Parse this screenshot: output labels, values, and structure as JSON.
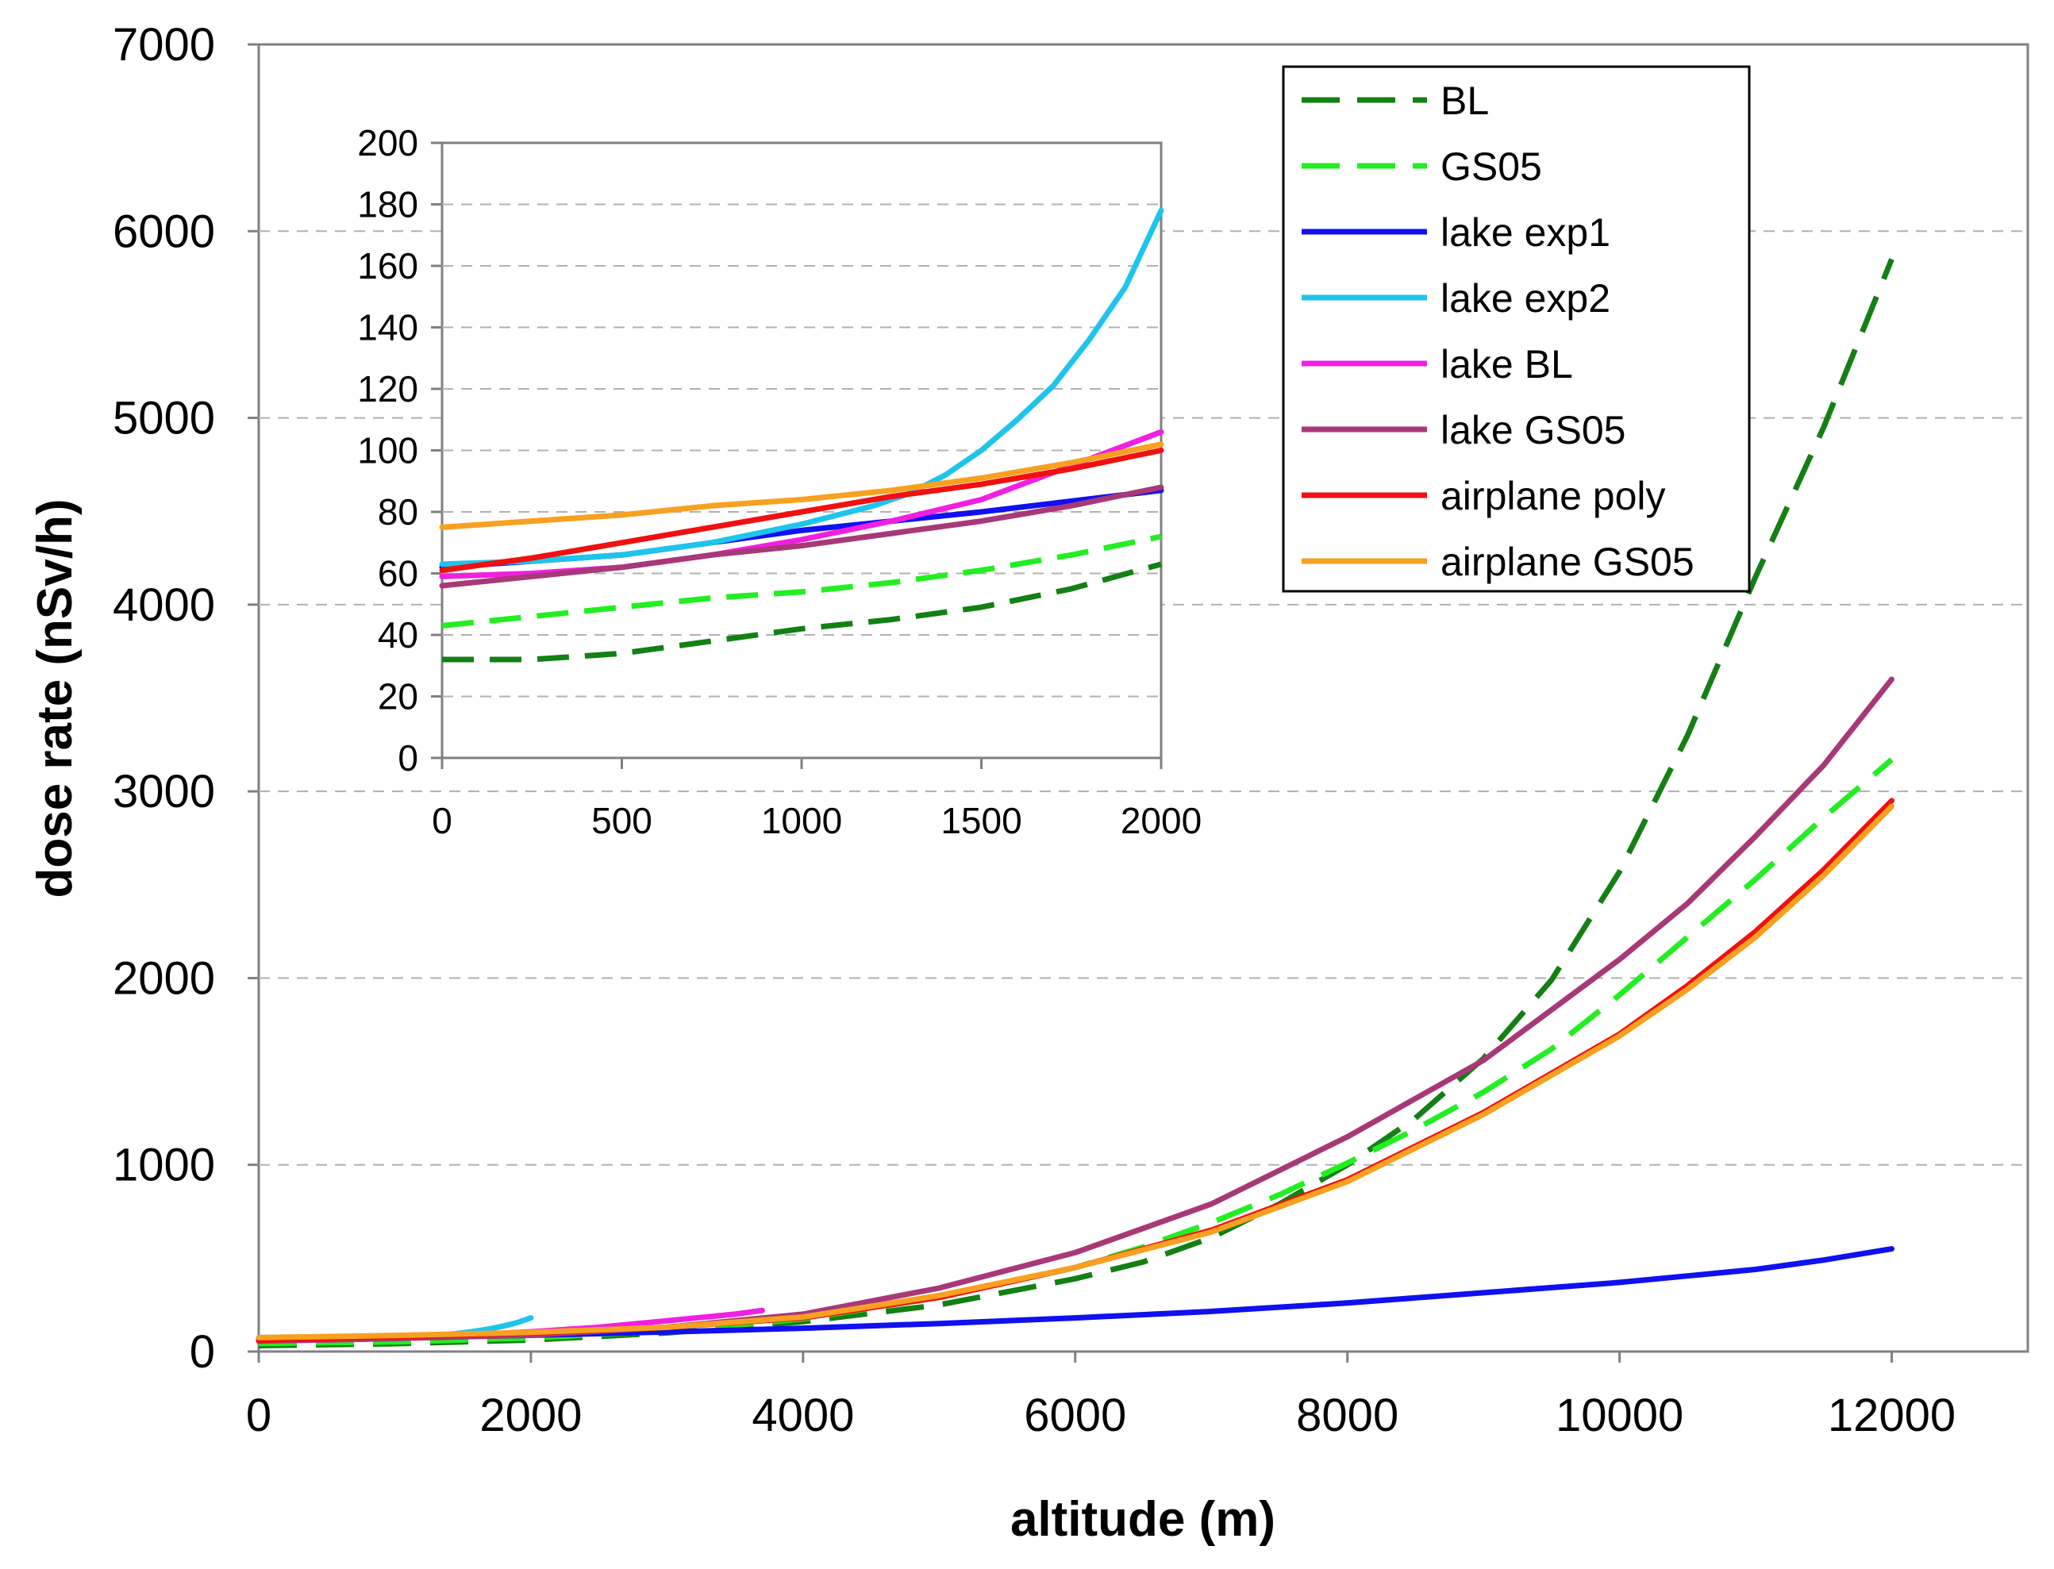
{
  "chart_data": [
    {
      "id": "main",
      "type": "line",
      "title": "",
      "xlabel": "altitude (m)",
      "ylabel": "dose rate (nSv/h)",
      "xlim": [
        0,
        13000
      ],
      "ylim": [
        0,
        7000
      ],
      "xticks": [
        0,
        2000,
        4000,
        6000,
        8000,
        10000,
        12000
      ],
      "yticks": [
        0,
        1000,
        2000,
        3000,
        4000,
        5000,
        6000,
        7000
      ],
      "grid": "horizontal dashed",
      "legend_position": "top-right",
      "series": [
        {
          "name": "BL",
          "color": "#138013",
          "style": "dashed",
          "x": [
            0,
            1000,
            2000,
            3000,
            4000,
            5000,
            6000,
            6500,
            7000,
            7500,
            8000,
            8500,
            9000,
            9500,
            10000,
            10500,
            11000,
            11500,
            12000
          ],
          "y": [
            32,
            42,
            62,
            100,
            160,
            250,
            390,
            480,
            610,
            790,
            1000,
            1250,
            1570,
            1990,
            2570,
            3300,
            4150,
            4950,
            5850
          ]
        },
        {
          "name": "GS05",
          "color": "#22ee22",
          "style": "dashed",
          "x": [
            0,
            1000,
            2000,
            3000,
            4000,
            5000,
            6000,
            6500,
            7000,
            7500,
            8000,
            8500,
            9000,
            9500,
            10000,
            10500,
            11000,
            11500,
            12000
          ],
          "y": [
            43,
            52,
            73,
            110,
            175,
            290,
            450,
            560,
            690,
            840,
            1010,
            1190,
            1390,
            1620,
            1910,
            2220,
            2530,
            2860,
            3170
          ]
        },
        {
          "name": "lake exp1",
          "color": "#1010f0",
          "style": "solid",
          "x": [
            0,
            1000,
            2000,
            3000,
            4000,
            5000,
            6000,
            7000,
            8000,
            9000,
            10000,
            10500,
            11000,
            11500,
            12000
          ],
          "y": [
            62,
            75,
            87,
            105,
            125,
            150,
            180,
            215,
            260,
            315,
            370,
            405,
            440,
            490,
            550
          ]
        },
        {
          "name": "lake exp2",
          "color": "#1ec4ec",
          "style": "solid",
          "x": [
            0,
            500,
            1000,
            1200,
            1400,
            1500,
            1600,
            1700,
            1800,
            1900,
            2000
          ],
          "y": [
            63,
            67,
            76,
            82,
            92,
            100,
            110,
            122,
            137,
            155,
            180
          ]
        },
        {
          "name": "lake BL",
          "color": "#f020e0",
          "style": "solid",
          "x": [
            0,
            500,
            1000,
            1500,
            2000,
            2500,
            3000,
            3500,
            3700
          ],
          "y": [
            58,
            62,
            70,
            88,
            106,
            130,
            165,
            200,
            220
          ]
        },
        {
          "name": "lake GS05",
          "color": "#a83878",
          "style": "solid",
          "x": [
            0,
            1000,
            2000,
            3000,
            4000,
            5000,
            6000,
            7000,
            8000,
            9000,
            10000,
            10500,
            11000,
            11500,
            12000
          ],
          "y": [
            56,
            70,
            88,
            130,
            200,
            340,
            530,
            790,
            1150,
            1560,
            2100,
            2400,
            2760,
            3140,
            3600
          ]
        },
        {
          "name": "airplane poly",
          "color": "#f01010",
          "style": "solid",
          "x": [
            0,
            1000,
            2000,
            3000,
            4000,
            5000,
            6000,
            7000,
            8000,
            9000,
            10000,
            10500,
            11000,
            11500,
            12000
          ],
          "y": [
            60,
            80,
            100,
            130,
            180,
            290,
            450,
            650,
            920,
            1280,
            1700,
            1960,
            2250,
            2580,
            2950
          ]
        },
        {
          "name": "airplane GS05",
          "color": "#f8a020",
          "style": "solid",
          "x": [
            0,
            1000,
            2000,
            3000,
            4000,
            5000,
            6000,
            7000,
            8000,
            9000,
            10000,
            10500,
            11000,
            11500,
            12000
          ],
          "y": [
            75,
            86,
            103,
            130,
            185,
            300,
            450,
            640,
            910,
            1270,
            1690,
            1940,
            2220,
            2550,
            2920
          ]
        }
      ]
    },
    {
      "id": "inset",
      "type": "line",
      "title": "",
      "xlabel": "",
      "ylabel": "",
      "xlim": [
        0,
        2000
      ],
      "ylim": [
        0,
        200
      ],
      "xticks": [
        0,
        500,
        1000,
        1500,
        2000
      ],
      "yticks": [
        0,
        20,
        40,
        60,
        80,
        100,
        120,
        140,
        160,
        180,
        200
      ],
      "grid": "horizontal dashed",
      "series": [
        {
          "name": "BL",
          "color": "#138013",
          "style": "dashed",
          "x": [
            0,
            250,
            500,
            750,
            1000,
            1250,
            1500,
            1750,
            2000
          ],
          "y": [
            32,
            32,
            34,
            38,
            42,
            45,
            49,
            55,
            63
          ]
        },
        {
          "name": "GS05",
          "color": "#22ee22",
          "style": "dashed",
          "x": [
            0,
            250,
            500,
            750,
            1000,
            1250,
            1500,
            1750,
            2000
          ],
          "y": [
            43,
            46,
            49,
            52,
            54,
            57,
            61,
            66,
            72
          ]
        },
        {
          "name": "lake exp1",
          "color": "#1010f0",
          "style": "solid",
          "x": [
            0,
            500,
            1000,
            1500,
            2000
          ],
          "y": [
            62,
            66,
            74,
            80,
            87
          ]
        },
        {
          "name": "lake exp2",
          "color": "#1ec4ec",
          "style": "solid",
          "x": [
            0,
            250,
            500,
            750,
            1000,
            1200,
            1300,
            1400,
            1500,
            1600,
            1700,
            1800,
            1900,
            2000
          ],
          "y": [
            63,
            64,
            66,
            70,
            76,
            82,
            86,
            92,
            100,
            110,
            121,
            136,
            153,
            178
          ]
        },
        {
          "name": "lake BL",
          "color": "#f020e0",
          "style": "solid",
          "x": [
            0,
            250,
            500,
            750,
            1000,
            1250,
            1500,
            1750,
            2000
          ],
          "y": [
            59,
            60,
            62,
            66,
            71,
            77,
            84,
            95,
            106
          ]
        },
        {
          "name": "lake GS05",
          "color": "#a83878",
          "style": "solid",
          "x": [
            0,
            250,
            500,
            750,
            1000,
            1250,
            1500,
            1750,
            2000
          ],
          "y": [
            56,
            59,
            62,
            66,
            69,
            73,
            77,
            82,
            88
          ]
        },
        {
          "name": "airplane poly",
          "color": "#f01010",
          "style": "solid",
          "x": [
            0,
            250,
            500,
            750,
            1000,
            1250,
            1500,
            1750,
            2000
          ],
          "y": [
            61,
            65,
            70,
            75,
            80,
            85,
            89,
            94,
            100
          ]
        },
        {
          "name": "airplane GS05",
          "color": "#f8a020",
          "style": "solid",
          "x": [
            0,
            250,
            500,
            750,
            1000,
            1250,
            1500,
            1750,
            2000
          ],
          "y": [
            75,
            77,
            79,
            82,
            84,
            87,
            91,
            96,
            102
          ]
        }
      ]
    }
  ]
}
